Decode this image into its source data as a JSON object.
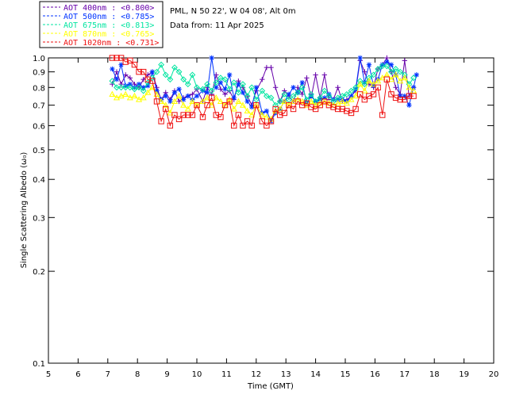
{
  "chart_data": {
    "type": "scatter",
    "info": {
      "location": "PML, N 50 22', W 04 08', Alt 0m",
      "date": "Data from: 11 Apr 2025"
    },
    "xlabel": "Time (GMT)",
    "ylabel": "Single Scattering Albedo (ω₀)",
    "xlim": [
      5,
      20
    ],
    "ylim": [
      0.1,
      1.0
    ],
    "yscale": "log",
    "xticks": [
      "5",
      "6",
      "7",
      "8",
      "9",
      "10",
      "11",
      "12",
      "13",
      "14",
      "15",
      "16",
      "17",
      "18",
      "19",
      "20"
    ],
    "yticks": [
      {
        "value": 0.1,
        "label": "0.1"
      },
      {
        "value": 0.2,
        "label": "0.2"
      },
      {
        "value": 0.3,
        "label": "0.3"
      },
      {
        "value": 0.4,
        "label": "0.4"
      },
      {
        "value": 0.5,
        "label": "0.5"
      },
      {
        "value": 0.6,
        "label": "0.6"
      },
      {
        "value": 0.7,
        "label": "0.7"
      },
      {
        "value": 0.8,
        "label": "0.8"
      },
      {
        "value": 0.9,
        "label": "0.9"
      },
      {
        "value": 1.0,
        "label": "1.0"
      }
    ],
    "legend_position": "top-left",
    "series": [
      {
        "name": "AOT  400nm : <0.800>",
        "color": "#6600aa",
        "marker": "plus",
        "x": [
          7.15,
          7.3,
          7.45,
          7.6,
          7.75,
          7.9,
          8.05,
          8.2,
          8.35,
          8.5,
          8.65,
          8.8,
          8.95,
          9.1,
          9.25,
          9.4,
          9.55,
          9.7,
          9.85,
          10.0,
          10.2,
          10.35,
          10.5,
          10.65,
          10.8,
          10.95,
          11.1,
          11.25,
          11.4,
          11.55,
          11.7,
          11.85,
          12.0,
          12.2,
          12.35,
          12.5,
          12.65,
          12.8,
          12.95,
          13.1,
          13.25,
          13.4,
          13.55,
          13.7,
          13.85,
          14.0,
          14.15,
          14.3,
          14.45,
          14.6,
          14.75,
          14.9,
          15.05,
          15.2,
          15.35,
          15.5,
          15.65,
          15.8,
          15.95,
          16.1,
          16.25,
          16.4,
          16.55,
          16.7,
          16.85,
          17.0,
          17.15,
          17.3
        ],
        "y": [
          0.82,
          0.9,
          0.82,
          0.88,
          0.86,
          0.82,
          0.8,
          0.85,
          0.88,
          0.9,
          0.8,
          0.73,
          0.77,
          0.73,
          0.78,
          0.72,
          0.74,
          0.75,
          0.76,
          0.79,
          0.72,
          0.8,
          0.76,
          0.88,
          0.79,
          0.76,
          0.78,
          0.73,
          0.84,
          0.8,
          0.75,
          0.7,
          0.78,
          0.85,
          0.93,
          0.93,
          0.8,
          0.72,
          0.78,
          0.75,
          0.72,
          0.8,
          0.76,
          0.86,
          0.74,
          0.88,
          0.74,
          0.88,
          0.73,
          0.73,
          0.8,
          0.72,
          0.73,
          0.75,
          0.78,
          0.98,
          0.9,
          0.82,
          0.8,
          0.92,
          0.95,
          1.0,
          0.9,
          0.8,
          0.76,
          0.98,
          0.75,
          0.8
        ]
      },
      {
        "name": "AOT  500nm : <0.785>",
        "color": "#0033ff",
        "marker": "star",
        "x": [
          7.15,
          7.3,
          7.45,
          7.6,
          7.75,
          7.9,
          8.05,
          8.2,
          8.35,
          8.5,
          8.65,
          8.8,
          8.95,
          9.1,
          9.25,
          9.4,
          9.55,
          9.7,
          9.85,
          10.0,
          10.2,
          10.35,
          10.5,
          10.65,
          10.8,
          10.95,
          11.1,
          11.25,
          11.4,
          11.55,
          11.7,
          11.85,
          12.0,
          12.2,
          12.35,
          12.5,
          12.65,
          12.8,
          12.95,
          13.1,
          13.25,
          13.4,
          13.55,
          13.7,
          13.85,
          14.0,
          14.15,
          14.3,
          14.45,
          14.6,
          14.75,
          14.9,
          15.05,
          15.2,
          15.35,
          15.5,
          15.65,
          15.8,
          15.95,
          16.1,
          16.25,
          16.4,
          16.55,
          16.7,
          16.85,
          17.0,
          17.15,
          17.3,
          17.4
        ],
        "y": [
          0.92,
          0.85,
          0.95,
          0.81,
          0.82,
          0.8,
          0.82,
          0.8,
          0.81,
          0.9,
          0.78,
          0.73,
          0.75,
          0.72,
          0.77,
          0.79,
          0.73,
          0.75,
          0.73,
          0.75,
          0.78,
          0.77,
          1.0,
          0.8,
          0.83,
          0.79,
          0.88,
          0.74,
          0.82,
          0.77,
          0.72,
          0.69,
          0.8,
          0.66,
          0.67,
          0.62,
          0.66,
          0.68,
          0.72,
          0.76,
          0.8,
          0.77,
          0.83,
          0.71,
          0.75,
          0.72,
          0.73,
          0.74,
          0.76,
          0.73,
          0.73,
          0.73,
          0.72,
          0.75,
          0.79,
          1.0,
          0.83,
          0.95,
          0.81,
          0.85,
          0.95,
          0.97,
          0.95,
          0.88,
          0.75,
          0.75,
          0.7,
          0.8,
          0.88
        ]
      },
      {
        "name": "AOT  675nm : <0.813>",
        "color": "#00e5a0",
        "marker": "diamond",
        "x": [
          7.15,
          7.3,
          7.45,
          7.6,
          7.75,
          7.9,
          8.05,
          8.2,
          8.35,
          8.5,
          8.65,
          8.8,
          8.95,
          9.1,
          9.25,
          9.4,
          9.55,
          9.7,
          9.85,
          10.0,
          10.2,
          10.35,
          10.5,
          10.65,
          10.8,
          10.95,
          11.1,
          11.25,
          11.4,
          11.55,
          11.7,
          11.85,
          12.0,
          12.2,
          12.35,
          12.5,
          12.65,
          12.8,
          12.95,
          13.1,
          13.25,
          13.4,
          13.55,
          13.7,
          13.85,
          14.0,
          14.15,
          14.3,
          14.45,
          14.6,
          14.75,
          14.9,
          15.05,
          15.2,
          15.35,
          15.5,
          15.65,
          15.8,
          15.95,
          16.1,
          16.25,
          16.4,
          16.55,
          16.7,
          16.85,
          17.0,
          17.15,
          17.3
        ],
        "y": [
          0.84,
          0.8,
          0.8,
          0.8,
          0.8,
          0.79,
          0.8,
          0.78,
          0.83,
          0.86,
          0.9,
          0.95,
          0.88,
          0.85,
          0.93,
          0.9,
          0.85,
          0.82,
          0.88,
          0.8,
          0.79,
          0.82,
          0.78,
          0.83,
          0.86,
          0.85,
          0.79,
          0.83,
          0.77,
          0.82,
          0.75,
          0.8,
          0.73,
          0.78,
          0.75,
          0.74,
          0.7,
          0.72,
          0.76,
          0.73,
          0.75,
          0.77,
          0.8,
          0.73,
          0.76,
          0.72,
          0.74,
          0.78,
          0.75,
          0.72,
          0.74,
          0.75,
          0.76,
          0.78,
          0.8,
          0.84,
          0.82,
          0.86,
          0.88,
          0.92,
          0.94,
          0.94,
          0.9,
          0.92,
          0.9,
          0.88,
          0.82,
          0.86
        ]
      },
      {
        "name": "AOT  870nm : <0.765>",
        "color": "#ffff00",
        "marker": "triangle",
        "x": [
          7.15,
          7.3,
          7.45,
          7.6,
          7.75,
          7.9,
          8.05,
          8.2,
          8.35,
          8.5,
          8.65,
          8.8,
          8.95,
          9.1,
          9.25,
          9.4,
          9.55,
          9.7,
          9.85,
          10.0,
          10.2,
          10.35,
          10.5,
          10.65,
          10.8,
          10.95,
          11.1,
          11.25,
          11.4,
          11.55,
          11.7,
          11.85,
          12.0,
          12.2,
          12.35,
          12.5,
          12.65,
          12.8,
          12.95,
          13.1,
          13.25,
          13.4,
          13.55,
          13.7,
          13.85,
          14.0,
          14.15,
          14.3,
          14.45,
          14.6,
          14.75,
          14.9,
          15.05,
          15.2,
          15.35,
          15.5,
          15.65,
          15.8,
          15.95,
          16.1,
          16.25,
          16.4,
          16.55,
          16.7,
          16.85,
          17.0,
          17.15,
          17.3
        ],
        "y": [
          0.76,
          0.74,
          0.75,
          0.76,
          0.74,
          0.75,
          0.73,
          0.74,
          0.77,
          0.8,
          0.76,
          0.72,
          0.7,
          0.66,
          0.72,
          0.75,
          0.7,
          0.68,
          0.72,
          0.7,
          0.72,
          0.74,
          0.7,
          0.74,
          0.72,
          0.7,
          0.73,
          0.68,
          0.72,
          0.7,
          0.67,
          0.65,
          0.7,
          0.65,
          0.64,
          0.63,
          0.67,
          0.68,
          0.72,
          0.7,
          0.72,
          0.73,
          0.72,
          0.7,
          0.72,
          0.7,
          0.71,
          0.72,
          0.71,
          0.7,
          0.71,
          0.72,
          0.71,
          0.73,
          0.75,
          0.82,
          0.78,
          0.84,
          0.82,
          0.84,
          0.86,
          0.88,
          0.85,
          0.88,
          0.84,
          0.86,
          0.8,
          0.78
        ]
      },
      {
        "name": "AOT 1020nm : <0.731>",
        "color": "#ee1111",
        "marker": "square",
        "x": [
          7.15,
          7.3,
          7.45,
          7.6,
          7.75,
          7.9,
          8.05,
          8.2,
          8.35,
          8.5,
          8.65,
          8.8,
          8.95,
          9.1,
          9.25,
          9.4,
          9.55,
          9.7,
          9.85,
          10.0,
          10.2,
          10.35,
          10.5,
          10.65,
          10.8,
          10.95,
          11.1,
          11.25,
          11.4,
          11.55,
          11.7,
          11.85,
          12.0,
          12.2,
          12.35,
          12.5,
          12.65,
          12.8,
          12.95,
          13.1,
          13.25,
          13.4,
          13.55,
          13.7,
          13.85,
          14.0,
          14.15,
          14.3,
          14.45,
          14.6,
          14.75,
          14.9,
          15.05,
          15.2,
          15.35,
          15.5,
          15.65,
          15.8,
          15.95,
          16.1,
          16.25,
          16.4,
          16.55,
          16.7,
          16.85,
          17.0,
          17.15,
          17.3
        ],
        "y": [
          1.0,
          1.0,
          1.0,
          0.97,
          0.98,
          0.95,
          0.9,
          0.9,
          0.85,
          0.84,
          0.72,
          0.62,
          0.68,
          0.6,
          0.65,
          0.63,
          0.65,
          0.65,
          0.65,
          0.7,
          0.64,
          0.7,
          0.74,
          0.65,
          0.64,
          0.7,
          0.72,
          0.6,
          0.65,
          0.6,
          0.62,
          0.6,
          0.7,
          0.62,
          0.6,
          0.62,
          0.68,
          0.65,
          0.66,
          0.7,
          0.68,
          0.72,
          0.7,
          0.71,
          0.69,
          0.68,
          0.7,
          0.72,
          0.7,
          0.69,
          0.68,
          0.68,
          0.67,
          0.66,
          0.68,
          0.76,
          0.73,
          0.75,
          0.76,
          0.8,
          0.65,
          0.85,
          0.76,
          0.74,
          0.73,
          0.73,
          0.75,
          0.75
        ]
      }
    ]
  }
}
